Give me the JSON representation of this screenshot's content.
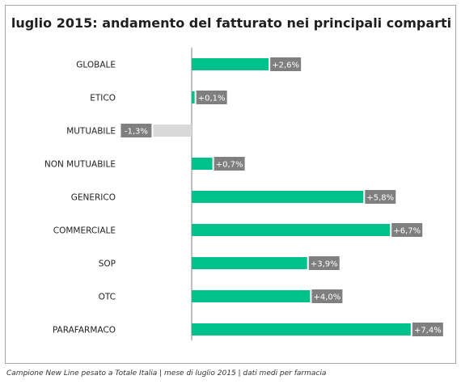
{
  "chart_data": {
    "type": "bar",
    "orientation": "horizontal",
    "title": "luglio 2015: andamento del fatturato nei principali comparti",
    "categories": [
      "GLOBALE",
      "ETICO",
      "MUTUABILE",
      "NON MUTUABILE",
      "GENERICO",
      "COMMERCIALE",
      "SOP",
      "OTC",
      "PARAFARMACO"
    ],
    "values": [
      2.6,
      0.1,
      -1.3,
      0.7,
      5.8,
      6.7,
      3.9,
      4.0,
      7.4
    ],
    "data_labels": [
      "+2,6%",
      "+0,1%",
      "-1,3%",
      "+0,7%",
      "+5,8%",
      "+6,7%",
      "+3,9%",
      "+4,0%",
      "+7,4%"
    ],
    "colors": {
      "positive": "#00c08b",
      "negative": "#d9d9d9",
      "label_box": "#7f7f7f",
      "axis": "#808080"
    },
    "grid": false,
    "legend": "none"
  },
  "footnote": "Campione New Line pesato a Totale Italia | mese di luglio 2015 | dati medi per farmacia"
}
